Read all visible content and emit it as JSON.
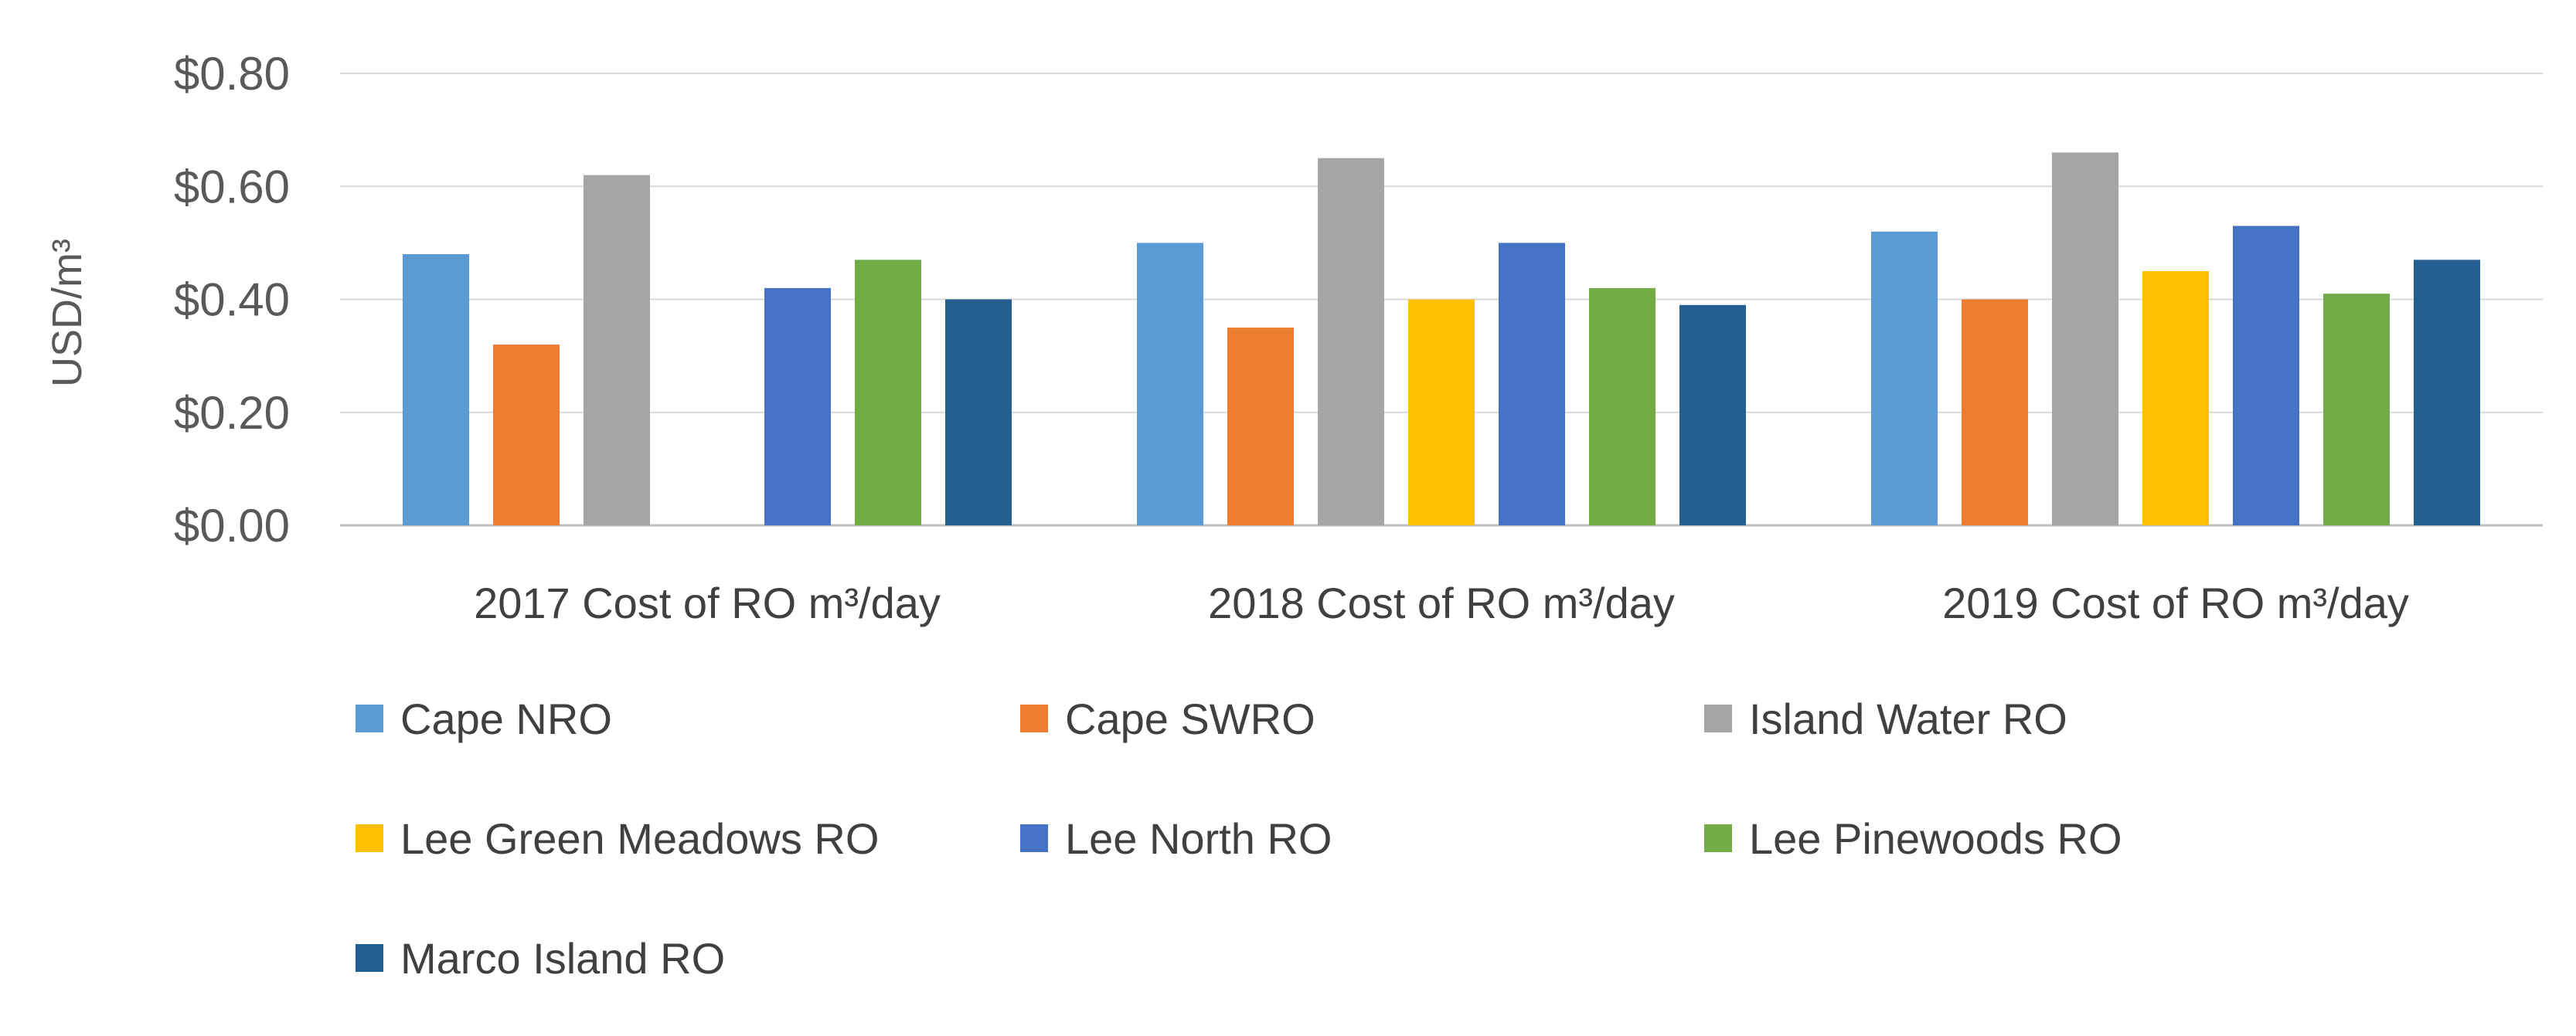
{
  "chart_data": {
    "type": "bar",
    "ylabel": "USD/m³",
    "ylim": [
      0,
      0.8
    ],
    "yticks": [
      "$0.00",
      "$0.20",
      "$0.40",
      "$0.60",
      "$0.80"
    ],
    "grid": true,
    "legend_position": "bottom",
    "categories": [
      "2017 Cost of RO m³/day",
      "2018 Cost of RO m³/day",
      "2019 Cost of RO m³/day"
    ],
    "series": [
      {
        "name": "Cape NRO",
        "color": "#5B9BD5",
        "values": [
          0.48,
          0.5,
          0.52
        ]
      },
      {
        "name": "Cape SWRO",
        "color": "#ED7D31",
        "values": [
          0.32,
          0.35,
          0.4
        ]
      },
      {
        "name": "Island Water RO",
        "color": "#A5A5A5",
        "values": [
          0.62,
          0.65,
          0.66
        ]
      },
      {
        "name": "Lee Green Meadows RO",
        "color": "#FFC000",
        "values": [
          null,
          0.4,
          0.45
        ]
      },
      {
        "name": "Lee North RO",
        "color": "#4472C4",
        "values": [
          0.42,
          0.5,
          0.53
        ]
      },
      {
        "name": "Lee Pinewoods RO",
        "color": "#70AD47",
        "values": [
          0.47,
          0.42,
          0.41
        ]
      },
      {
        "name": "Marco Island RO",
        "color": "#255E91",
        "values": [
          0.4,
          0.39,
          0.47
        ]
      }
    ]
  }
}
